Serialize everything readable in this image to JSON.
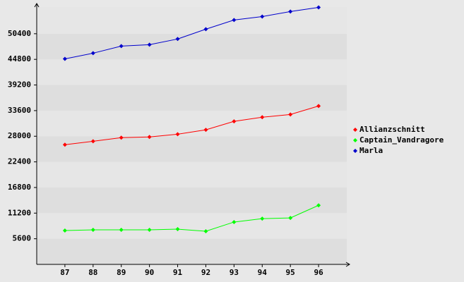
{
  "chart_data": {
    "type": "line",
    "x": [
      87,
      88,
      89,
      90,
      91,
      92,
      93,
      94,
      95,
      96
    ],
    "xlim": [
      86,
      97
    ],
    "xticks": [
      87,
      88,
      89,
      90,
      91,
      92,
      93,
      94,
      95,
      96
    ],
    "ylim": [
      0,
      57000
    ],
    "yticks": [
      5600,
      11200,
      16800,
      22400,
      28000,
      33600,
      39200,
      44800,
      50400
    ],
    "grid": true,
    "legend": "right",
    "series": [
      {
        "name": "Allianzschnitt",
        "color": "#ff0000",
        "values": [
          26150,
          26900,
          27700,
          27850,
          28450,
          29400,
          31250,
          32150,
          32750,
          34600
        ]
      },
      {
        "name": "Captain_Vandragore",
        "color": "#00ff00",
        "values": [
          7400,
          7550,
          7550,
          7550,
          7700,
          7250,
          9250,
          10000,
          10150,
          12900
        ]
      },
      {
        "name": "Marla",
        "color": "#0000cc",
        "values": [
          44900,
          46150,
          47700,
          48000,
          49250,
          51400,
          53400,
          54150,
          55250,
          56150
        ]
      }
    ]
  }
}
